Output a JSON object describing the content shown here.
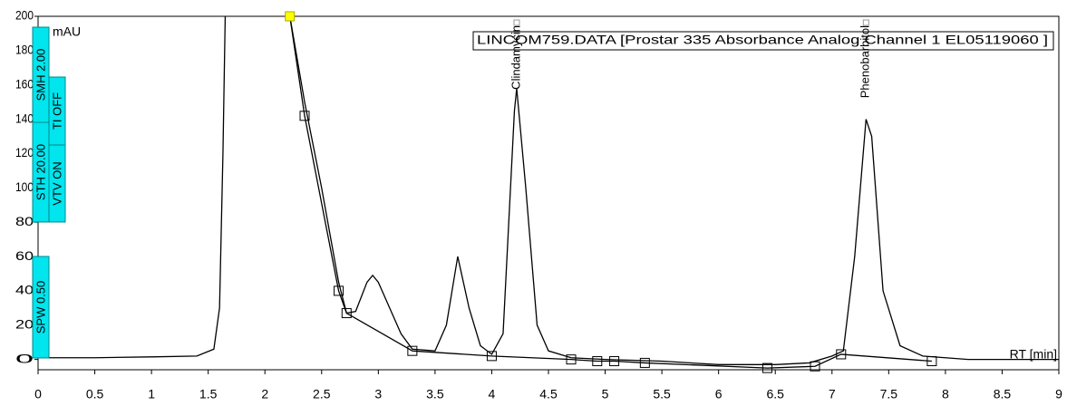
{
  "chart_data": {
    "type": "line",
    "y_label": "mAU",
    "x_label": "RT [min]",
    "title": "LINCOM759.DATA [Prostar 335 Absorbance Analog Channel 1 EL05119060 ]",
    "xlim": [
      0,
      9
    ],
    "ylim": [
      -6,
      200
    ],
    "xticks": [
      0,
      0.5,
      1,
      1.5,
      2,
      2.5,
      3,
      3.5,
      4,
      4.5,
      5,
      5.5,
      6,
      6.5,
      7,
      7.5,
      8,
      8.5,
      9
    ],
    "yticks": [
      0,
      20,
      40,
      60,
      80,
      100,
      120,
      140,
      160,
      180,
      200
    ],
    "series": [
      {
        "color": "#000000",
        "x": [
          0,
          0.5,
          1,
          1.4,
          1.55,
          1.6,
          1.63,
          1.65,
          2.0,
          2.22,
          2.35,
          2.5,
          2.65,
          2.72,
          2.8,
          2.9,
          2.95,
          3.0,
          3.1,
          3.2,
          3.3,
          3.5,
          3.6,
          3.7,
          3.8,
          3.9,
          4.0,
          4.1,
          4.2,
          4.22,
          4.3,
          4.4,
          4.5,
          4.7,
          5.0,
          5.5,
          6.0,
          6.5,
          6.8,
          7.0,
          7.1,
          7.2,
          7.3,
          7.35,
          7.45,
          7.6,
          7.8,
          8.2,
          9
        ],
        "values": [
          1,
          1,
          1.5,
          2,
          6,
          30,
          120,
          200,
          null,
          200,
          150,
          100,
          45,
          27,
          28,
          45,
          49,
          45,
          30,
          15,
          6,
          5,
          20,
          60,
          30,
          8,
          3,
          15,
          145,
          158,
          100,
          20,
          5,
          1,
          0,
          -1,
          -3,
          -3,
          -2,
          2,
          5,
          60,
          140,
          130,
          40,
          8,
          2,
          0,
          0
        ]
      },
      {
        "color": "#000000",
        "markers": true,
        "x": [
          2.22,
          2.35,
          2.65,
          2.72,
          3.3,
          4.0,
          4.7,
          4.93,
          5.08,
          5.35,
          6.43,
          6.85,
          7.08,
          7.88
        ],
        "values": [
          200,
          142,
          40,
          27,
          5,
          2,
          0,
          -1,
          -1,
          -2,
          -5,
          -4,
          3,
          -1
        ]
      }
    ],
    "peak_labels": [
      {
        "x": 4.22,
        "label": "Clindamycin"
      },
      {
        "x": 7.3,
        "label": "Phenobarbitol"
      }
    ],
    "settings_labels": [
      "SMH 2.00",
      "STH 20.00",
      "SPW 0.50",
      "TI OFF",
      "VTV ON"
    ],
    "settings_color": "#00e5ee"
  }
}
